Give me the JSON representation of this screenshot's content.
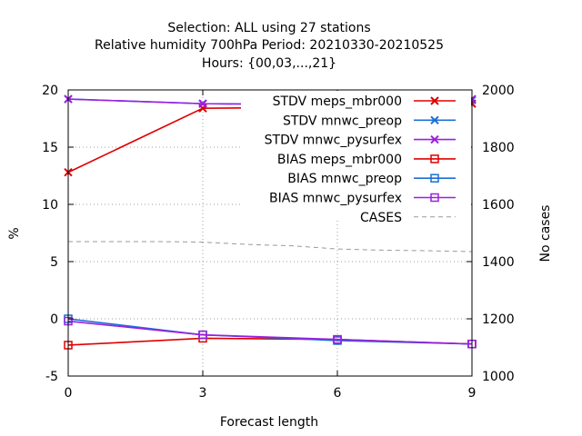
{
  "chart_data": {
    "type": "line",
    "title_lines": [
      "Selection: ALL using    27 stations",
      "Relative humidity 700hPa   Period: 20210330-20210525",
      "Hours: {00,03,...,21}"
    ],
    "xlabel": "Forecast length",
    "ylabel": "%",
    "y2label": "No cases",
    "x": [
      0,
      3,
      6,
      9
    ],
    "xlim": [
      0,
      9
    ],
    "ylim": [
      -5,
      20
    ],
    "y2lim": [
      1000,
      2000
    ],
    "xticks": [
      "0",
      "3",
      "6",
      "9"
    ],
    "yticks": [
      "-5",
      "0",
      "5",
      "10",
      "15",
      "20"
    ],
    "y2ticks": [
      "1000",
      "1200",
      "1400",
      "1600",
      "1800",
      "2000"
    ],
    "grid": true,
    "legend_position": "top-right",
    "series": [
      {
        "name": "STDV meps_mbr000",
        "color": "#e00000",
        "marker": "x",
        "axis": "y",
        "values": [
          12.8,
          18.4,
          18.5,
          18.8
        ]
      },
      {
        "name": "STDV mnwc_preop",
        "color": "#1a6fd4",
        "marker": "x",
        "axis": "y",
        "values": [
          19.2,
          18.8,
          18.7,
          19.1
        ]
      },
      {
        "name": "STDV mnwc_pysurfex",
        "color": "#9b1fe0",
        "marker": "x",
        "axis": "y",
        "values": [
          19.2,
          18.8,
          18.7,
          19.2
        ]
      },
      {
        "name": "BIAS meps_mbr000",
        "color": "#e00000",
        "marker": "square",
        "axis": "y",
        "values": [
          -2.3,
          -1.7,
          -1.8,
          -2.2
        ]
      },
      {
        "name": "BIAS mnwc_preop",
        "color": "#1a6fd4",
        "marker": "square",
        "axis": "y",
        "values": [
          0.0,
          -1.4,
          -1.9,
          -2.2
        ]
      },
      {
        "name": "BIAS mnwc_pysurfex",
        "color": "#9b1fe0",
        "marker": "square",
        "axis": "y",
        "values": [
          -0.2,
          -1.4,
          -1.8,
          -2.2
        ]
      },
      {
        "name": "CASES",
        "color": "#999999",
        "marker": "none",
        "dashed": true,
        "axis": "y2",
        "x": [
          0,
          1,
          2,
          3,
          4,
          5,
          6,
          7,
          8,
          9
        ],
        "values": [
          1470,
          1470,
          1470,
          1468,
          1460,
          1455,
          1444,
          1440,
          1438,
          1435
        ]
      }
    ]
  }
}
